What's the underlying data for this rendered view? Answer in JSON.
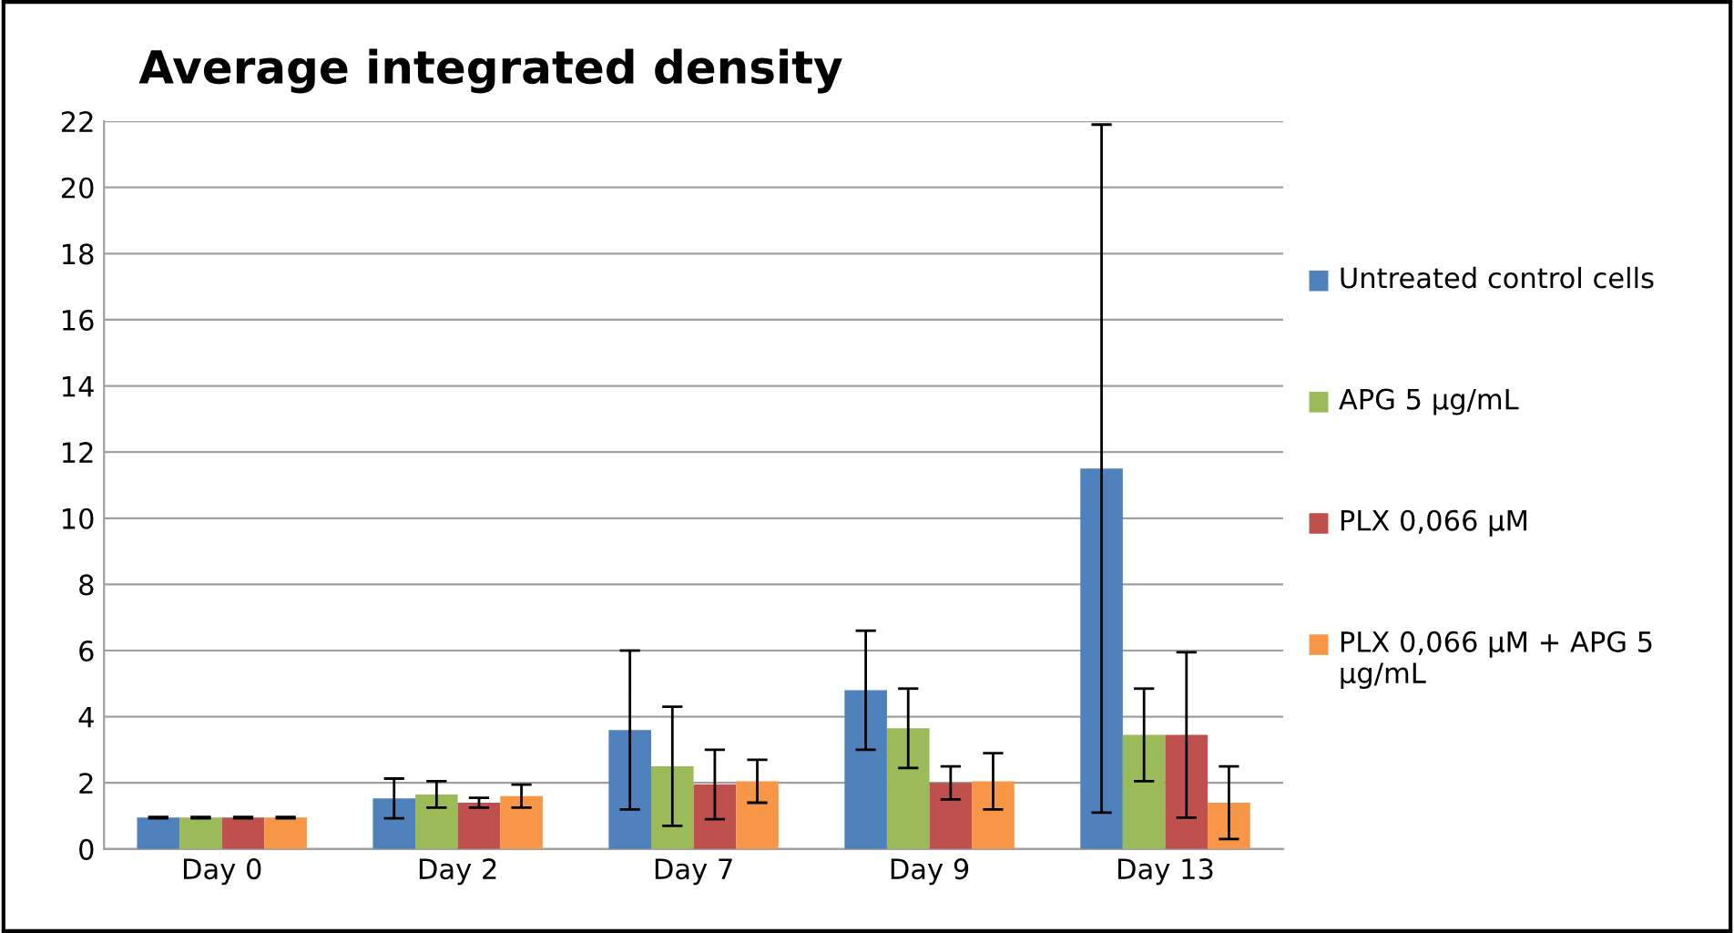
{
  "chart_data": {
    "type": "bar",
    "title": "Average integrated density",
    "categories": [
      "Day 0",
      "Day 2",
      "Day 7",
      "Day 9",
      "Day 13"
    ],
    "series": [
      {
        "name": "Untreated control cells",
        "color": "#4f81bd",
        "values": [
          0.95,
          1.53,
          3.6,
          4.8,
          11.5
        ],
        "errors": [
          0.02,
          0.6,
          2.4,
          1.8,
          10.4
        ]
      },
      {
        "name": "APG 5 µg/mL",
        "color": "#9bbb59",
        "values": [
          0.95,
          1.65,
          2.5,
          3.65,
          3.45
        ],
        "errors": [
          0.02,
          0.4,
          1.8,
          1.2,
          1.4
        ]
      },
      {
        "name": "PLX 0,066 µM",
        "color": "#c0504d",
        "values": [
          0.95,
          1.4,
          1.95,
          2.0,
          3.45
        ],
        "errors": [
          0.02,
          0.15,
          1.05,
          0.5,
          2.5
        ]
      },
      {
        "name": "PLX 0,066 µM + APG 5 µg/mL",
        "color": "#f79646",
        "values": [
          0.95,
          1.6,
          2.05,
          2.05,
          1.4
        ],
        "errors": [
          0.02,
          0.35,
          0.65,
          0.85,
          1.1
        ]
      }
    ],
    "ylim": [
      0,
      22
    ],
    "yticks": [
      0,
      2,
      4,
      6,
      8,
      10,
      12,
      14,
      16,
      18,
      20,
      22
    ],
    "grid": "y",
    "legend": "right"
  }
}
